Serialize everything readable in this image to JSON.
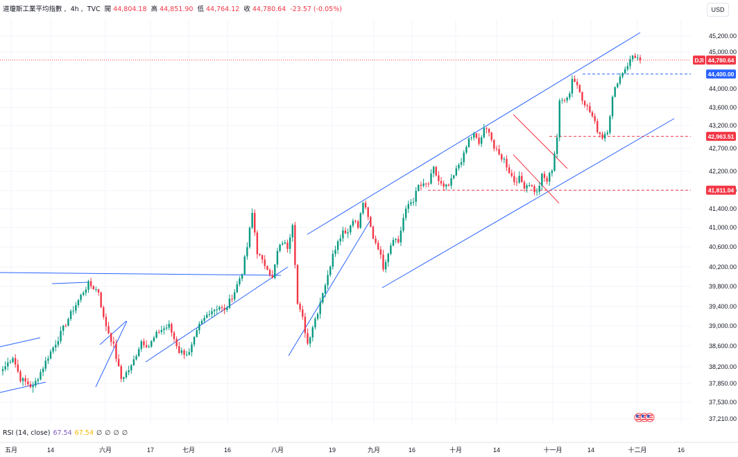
{
  "header": {
    "symbol_name": "道瓊斯工業平均指數",
    "interval": "4h",
    "source": "TVC",
    "open_label": "開",
    "open_value": "44,804.18",
    "high_label": "高",
    "high_value": "44,851.90",
    "low_label": "低",
    "low_value": "44,764.12",
    "close_label": "收",
    "close_value": "44,780.64",
    "change": "-23.57",
    "change_pct": "(-0.05%)"
  },
  "currency": "USD",
  "rsi": {
    "label": "RSI (14, close)",
    "value1": "67.54",
    "value2": "67.54",
    "placeholders": [
      "∅",
      "∅",
      "∅",
      "∅"
    ]
  },
  "colors": {
    "up": "#089981",
    "down": "#f23645",
    "trendline": "#2962ff",
    "channel_red": "#f23645",
    "axis_text": "#131722",
    "grid": "#f0f3fa"
  },
  "chart_data": {
    "type": "candlestick",
    "symbol_tag": "DJI",
    "y_axis": {
      "ticks": [
        "45,200.00",
        "45,000.00",
        "44,000.00",
        "43,600.00",
        "43,200.00",
        "42,700.00",
        "42,200.00",
        "41,800.00",
        "41,400.00",
        "41,000.00",
        "40,600.00",
        "40,200.00",
        "39,800.00",
        "39,400.00",
        "39,000.00",
        "38,600.00",
        "38,200.00",
        "37,850.00",
        "37,530.00",
        "37,210.00"
      ]
    },
    "x_axis": {
      "ticks": [
        "五月",
        "14",
        "六月",
        "17",
        "七月",
        "16",
        "八月",
        "19",
        "九月",
        "16",
        "十月",
        "14",
        "十一月",
        "14",
        "十二月",
        "16"
      ]
    },
    "price_labels": [
      {
        "text": "DJI",
        "value": 44780.64,
        "style": "symbol"
      },
      {
        "text": "44,780.64",
        "value": 44780.64,
        "style": "last"
      },
      {
        "text": "44,400.00",
        "value": 44400,
        "style": "blue"
      },
      {
        "text": "42,963.51",
        "value": 42963.51,
        "style": "red"
      },
      {
        "text": "41,811.04",
        "value": 41811.04,
        "style": "red"
      }
    ],
    "waypoints": [
      [
        0,
        38150
      ],
      [
        4,
        38400
      ],
      [
        7,
        37950
      ],
      [
        12,
        37780
      ],
      [
        18,
        38400
      ],
      [
        22,
        38750
      ],
      [
        28,
        39350
      ],
      [
        32,
        39700
      ],
      [
        34,
        39850
      ],
      [
        38,
        39700
      ],
      [
        40,
        39150
      ],
      [
        44,
        38600
      ],
      [
        47,
        37950
      ],
      [
        51,
        38200
      ],
      [
        55,
        38700
      ],
      [
        58,
        38600
      ],
      [
        62,
        38900
      ],
      [
        66,
        39000
      ],
      [
        70,
        38500
      ],
      [
        74,
        38450
      ],
      [
        78,
        39000
      ],
      [
        82,
        39300
      ],
      [
        86,
        39400
      ],
      [
        88,
        39300
      ],
      [
        92,
        39700
      ],
      [
        95,
        40100
      ],
      [
        97,
        40600
      ],
      [
        99,
        41300
      ],
      [
        101,
        40500
      ],
      [
        103,
        40300
      ],
      [
        105,
        40200
      ],
      [
        107,
        39950
      ],
      [
        109,
        40500
      ],
      [
        111,
        40700
      ],
      [
        113,
        40600
      ],
      [
        115,
        41100
      ],
      [
        116,
        40300
      ],
      [
        117,
        39450
      ],
      [
        119,
        39150
      ],
      [
        121,
        38650
      ],
      [
        123,
        39000
      ],
      [
        125,
        39300
      ],
      [
        127,
        39700
      ],
      [
        129,
        40000
      ],
      [
        131,
        40500
      ],
      [
        133,
        40700
      ],
      [
        135,
        40950
      ],
      [
        137,
        40900
      ],
      [
        139,
        41200
      ],
      [
        141,
        41000
      ],
      [
        143,
        41550
      ],
      [
        145,
        41200
      ],
      [
        147,
        40800
      ],
      [
        149,
        40600
      ],
      [
        151,
        40200
      ],
      [
        153,
        40500
      ],
      [
        155,
        40800
      ],
      [
        157,
        40700
      ],
      [
        159,
        41200
      ],
      [
        161,
        41500
      ],
      [
        163,
        41600
      ],
      [
        165,
        41900
      ],
      [
        167,
        41900
      ],
      [
        169,
        41950
      ],
      [
        171,
        42250
      ],
      [
        173,
        42000
      ],
      [
        175,
        41850
      ],
      [
        177,
        41900
      ],
      [
        179,
        42100
      ],
      [
        181,
        42350
      ],
      [
        183,
        42550
      ],
      [
        185,
        42900
      ],
      [
        187,
        43000
      ],
      [
        189,
        42800
      ],
      [
        191,
        43100
      ],
      [
        193,
        43100
      ],
      [
        195,
        42700
      ],
      [
        197,
        42550
      ],
      [
        199,
        42450
      ],
      [
        201,
        42200
      ],
      [
        203,
        42000
      ],
      [
        205,
        42050
      ],
      [
        207,
        41900
      ],
      [
        209,
        41950
      ],
      [
        211,
        41800
      ],
      [
        212,
        41750
      ],
      [
        214,
        42100
      ],
      [
        216,
        42000
      ],
      [
        218,
        42250
      ],
      [
        220,
        42950
      ],
      [
        221,
        43700
      ],
      [
        223,
        43800
      ],
      [
        225,
        43900
      ],
      [
        226,
        44300
      ],
      [
        228,
        44100
      ],
      [
        230,
        43800
      ],
      [
        232,
        43600
      ],
      [
        234,
        43400
      ],
      [
        236,
        43100
      ],
      [
        238,
        42950
      ],
      [
        240,
        43100
      ],
      [
        242,
        43800
      ],
      [
        244,
        44200
      ],
      [
        246,
        44450
      ],
      [
        248,
        44650
      ],
      [
        250,
        44900
      ],
      [
        252,
        44850
      ],
      [
        253,
        44780.64
      ]
    ]
  }
}
